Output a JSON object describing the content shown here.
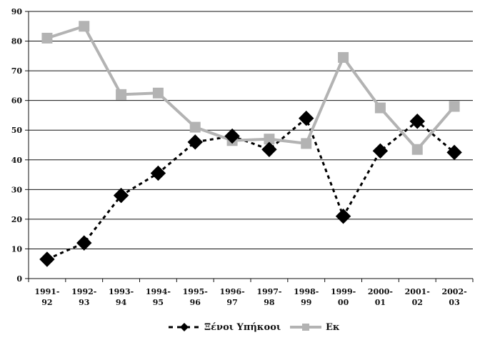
{
  "chart_data": {
    "type": "line",
    "title": "",
    "xlabel": "",
    "ylabel": "",
    "ylim": [
      0,
      90
    ],
    "yticks": [
      0,
      10,
      20,
      30,
      40,
      50,
      60,
      70,
      80,
      90
    ],
    "grid": true,
    "legend_position": "bottom",
    "categories": [
      [
        "1991-",
        "92"
      ],
      [
        "1992-",
        "93"
      ],
      [
        "1993-",
        "94"
      ],
      [
        "1994-",
        "95"
      ],
      [
        "1995-",
        "96"
      ],
      [
        "1996-",
        "97"
      ],
      [
        "1997-",
        "98"
      ],
      [
        "1998-",
        "99"
      ],
      [
        "1999-",
        "00"
      ],
      [
        "2000-",
        "01"
      ],
      [
        "2001-",
        "02"
      ],
      [
        "2002-",
        "03"
      ]
    ],
    "series": [
      {
        "name": "Ξένοι Υπήκοοι",
        "values": [
          6.5,
          12,
          28,
          35.5,
          46,
          48,
          43.5,
          54,
          21,
          43,
          53,
          42.5
        ],
        "color": "#000000",
        "line_style": "dashed",
        "marker": "diamond"
      },
      {
        "name": "Εκ",
        "values": [
          81,
          85,
          62,
          62.5,
          51,
          46.5,
          47,
          45.5,
          74.5,
          57.5,
          43.5,
          58
        ],
        "color": "#b3b3b3",
        "line_style": "solid",
        "marker": "square"
      }
    ]
  }
}
